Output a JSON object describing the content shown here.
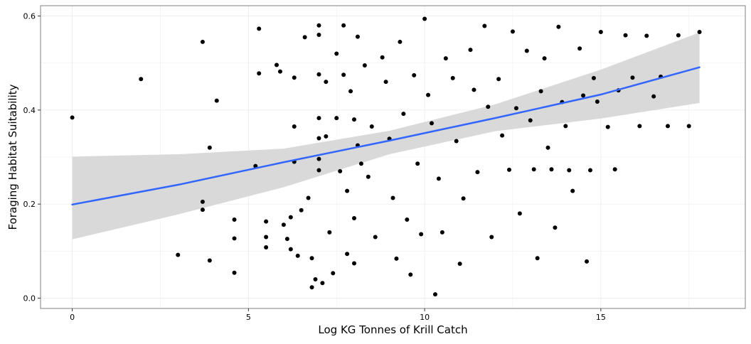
{
  "chart_data": {
    "type": "scatter",
    "title": "",
    "xlabel": "Log KG Tonnes of Krill Catch",
    "ylabel": "Foraging Habitat Suitability",
    "xlim": [
      -0.9,
      19.1
    ],
    "ylim": [
      -0.022,
      0.622
    ],
    "x_ticks": [
      0,
      5,
      10,
      15
    ],
    "y_ticks": [
      0.0,
      0.2,
      0.4,
      0.6
    ],
    "x_tick_labels": [
      "0",
      "5",
      "10",
      "15"
    ],
    "y_tick_labels": [
      "0.0",
      "0.2",
      "0.4",
      "0.6"
    ],
    "grid": true,
    "legend": "none",
    "colors": {
      "points": "#000000",
      "trend_line": "#3366ff",
      "confidence_band": "#d9d9d9",
      "grid": "#ebebeb",
      "panel_border": "#7f7f7f"
    },
    "trend_line": {
      "name": "",
      "method": "linear",
      "x": [
        0,
        3,
        6,
        9,
        12,
        15,
        17.8
      ],
      "y": [
        0.199,
        0.241,
        0.289,
        0.335,
        0.383,
        0.433,
        0.491
      ]
    },
    "confidence_band": {
      "x": [
        0,
        3,
        6,
        9,
        12,
        15,
        17.8
      ],
      "lower": [
        0.125,
        0.178,
        0.236,
        0.306,
        0.355,
        0.382,
        0.415
      ],
      "upper": [
        0.301,
        0.306,
        0.318,
        0.356,
        0.412,
        0.486,
        0.565
      ]
    },
    "points": [
      [
        0.0,
        0.384
      ],
      [
        1.95,
        0.466
      ],
      [
        3.0,
        0.092
      ],
      [
        3.7,
        0.545
      ],
      [
        3.7,
        0.205
      ],
      [
        3.7,
        0.188
      ],
      [
        3.9,
        0.32
      ],
      [
        3.9,
        0.08
      ],
      [
        4.1,
        0.42
      ],
      [
        4.6,
        0.167
      ],
      [
        4.6,
        0.127
      ],
      [
        4.6,
        0.054
      ],
      [
        5.2,
        0.281
      ],
      [
        5.3,
        0.573
      ],
      [
        5.3,
        0.478
      ],
      [
        5.5,
        0.163
      ],
      [
        5.5,
        0.13
      ],
      [
        5.5,
        0.108
      ],
      [
        5.8,
        0.496
      ],
      [
        5.9,
        0.482
      ],
      [
        6.0,
        0.156
      ],
      [
        6.1,
        0.126
      ],
      [
        6.2,
        0.172
      ],
      [
        6.2,
        0.104
      ],
      [
        6.3,
        0.469
      ],
      [
        6.3,
        0.365
      ],
      [
        6.3,
        0.29
      ],
      [
        6.4,
        0.09
      ],
      [
        6.5,
        0.187
      ],
      [
        6.6,
        0.555
      ],
      [
        6.7,
        0.213
      ],
      [
        6.8,
        0.023
      ],
      [
        6.8,
        0.085
      ],
      [
        6.9,
        0.04
      ],
      [
        7.0,
        0.58
      ],
      [
        7.0,
        0.56
      ],
      [
        7.0,
        0.476
      ],
      [
        7.0,
        0.383
      ],
      [
        7.0,
        0.34
      ],
      [
        7.0,
        0.296
      ],
      [
        7.0,
        0.272
      ],
      [
        7.1,
        0.032
      ],
      [
        7.2,
        0.46
      ],
      [
        7.2,
        0.344
      ],
      [
        7.3,
        0.14
      ],
      [
        7.4,
        0.053
      ],
      [
        7.5,
        0.52
      ],
      [
        7.5,
        0.383
      ],
      [
        7.6,
        0.27
      ],
      [
        7.7,
        0.58
      ],
      [
        7.7,
        0.475
      ],
      [
        7.8,
        0.094
      ],
      [
        7.8,
        0.228
      ],
      [
        7.9,
        0.44
      ],
      [
        8.0,
        0.38
      ],
      [
        8.0,
        0.17
      ],
      [
        8.0,
        0.074
      ],
      [
        8.1,
        0.556
      ],
      [
        8.1,
        0.325
      ],
      [
        8.2,
        0.286
      ],
      [
        8.3,
        0.495
      ],
      [
        8.4,
        0.258
      ],
      [
        8.5,
        0.365
      ],
      [
        8.6,
        0.13
      ],
      [
        8.8,
        0.512
      ],
      [
        8.9,
        0.46
      ],
      [
        9.0,
        0.339
      ],
      [
        9.1,
        0.213
      ],
      [
        9.2,
        0.084
      ],
      [
        9.3,
        0.545
      ],
      [
        9.4,
        0.392
      ],
      [
        9.5,
        0.167
      ],
      [
        9.6,
        0.05
      ],
      [
        9.7,
        0.474
      ],
      [
        9.8,
        0.286
      ],
      [
        9.9,
        0.136
      ],
      [
        10.0,
        0.594
      ],
      [
        10.1,
        0.432
      ],
      [
        10.2,
        0.372
      ],
      [
        10.3,
        0.008
      ],
      [
        10.4,
        0.254
      ],
      [
        10.5,
        0.14
      ],
      [
        10.6,
        0.51
      ],
      [
        10.8,
        0.468
      ],
      [
        10.9,
        0.334
      ],
      [
        11.0,
        0.073
      ],
      [
        11.1,
        0.212
      ],
      [
        11.3,
        0.528
      ],
      [
        11.4,
        0.443
      ],
      [
        11.5,
        0.268
      ],
      [
        11.7,
        0.579
      ],
      [
        11.8,
        0.407
      ],
      [
        11.9,
        0.13
      ],
      [
        12.1,
        0.466
      ],
      [
        12.2,
        0.346
      ],
      [
        12.4,
        0.273
      ],
      [
        12.5,
        0.567
      ],
      [
        12.6,
        0.404
      ],
      [
        12.7,
        0.18
      ],
      [
        12.9,
        0.526
      ],
      [
        13.0,
        0.378
      ],
      [
        13.1,
        0.274
      ],
      [
        13.2,
        0.085
      ],
      [
        13.3,
        0.44
      ],
      [
        13.4,
        0.51
      ],
      [
        13.5,
        0.32
      ],
      [
        13.6,
        0.274
      ],
      [
        13.7,
        0.15
      ],
      [
        13.8,
        0.577
      ],
      [
        13.9,
        0.417
      ],
      [
        14.0,
        0.366
      ],
      [
        14.1,
        0.272
      ],
      [
        14.2,
        0.228
      ],
      [
        14.4,
        0.531
      ],
      [
        14.5,
        0.431
      ],
      [
        14.6,
        0.078
      ],
      [
        14.7,
        0.272
      ],
      [
        14.8,
        0.468
      ],
      [
        14.9,
        0.418
      ],
      [
        15.0,
        0.566
      ],
      [
        15.2,
        0.364
      ],
      [
        15.4,
        0.274
      ],
      [
        15.5,
        0.442
      ],
      [
        15.7,
        0.559
      ],
      [
        15.9,
        0.469
      ],
      [
        16.1,
        0.366
      ],
      [
        16.3,
        0.558
      ],
      [
        16.5,
        0.429
      ],
      [
        16.7,
        0.471
      ],
      [
        16.9,
        0.366
      ],
      [
        17.2,
        0.559
      ],
      [
        17.5,
        0.366
      ],
      [
        17.8,
        0.566
      ]
    ]
  }
}
